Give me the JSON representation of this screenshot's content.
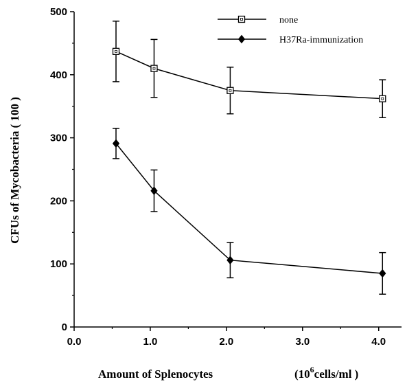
{
  "chart_data": {
    "type": "line",
    "xlabel": "Amount of Splenocytes",
    "xunit_prefix": "(10",
    "xunit_exp": "6",
    "xunit_suffix": "cells/ml )",
    "ylabel": "CFUs of Mycobacteria   ( 100 )",
    "xlim": [
      0.0,
      4.3
    ],
    "ylim": [
      0,
      500
    ],
    "xticks": [
      "0.0",
      "1.0",
      "2.0",
      "3.0",
      "4.0"
    ],
    "xtick_values": [
      0,
      1,
      2,
      3,
      4
    ],
    "yticks": [
      "0",
      "100",
      "200",
      "300",
      "400",
      "500"
    ],
    "ytick_values": [
      0,
      100,
      200,
      300,
      400,
      500
    ],
    "legend_position": "top-right",
    "series": [
      {
        "name": "none",
        "marker": "open-square",
        "color": "#000000",
        "x": [
          0.55,
          1.05,
          2.05,
          4.05
        ],
        "y": [
          437,
          410,
          375,
          362
        ],
        "err": [
          48,
          46,
          37,
          30
        ]
      },
      {
        "name": "H37Ra-immunization",
        "marker": "filled-diamond",
        "color": "#000000",
        "x": [
          0.55,
          1.05,
          2.05,
          4.05
        ],
        "y": [
          291,
          216,
          106,
          85
        ],
        "err": [
          24,
          33,
          28,
          33
        ]
      }
    ]
  }
}
